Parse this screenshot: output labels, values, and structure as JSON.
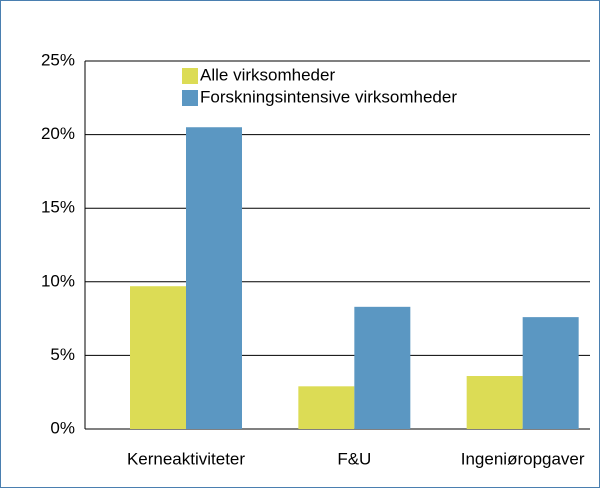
{
  "chart_data": {
    "type": "bar",
    "categories": [
      "Kerneaktiviteter",
      "F&U",
      "Ingeniøropgaver"
    ],
    "series": [
      {
        "name": "Alle virksomheder",
        "color": "#dcdc55",
        "values": [
          9.7,
          2.9,
          3.6
        ]
      },
      {
        "name": "Forskningsintensive virksomheder",
        "color": "#5b97c2",
        "values": [
          20.5,
          8.3,
          7.6
        ]
      }
    ],
    "ylim": [
      0,
      25
    ],
    "yticks": [
      {
        "value": 0,
        "label": "0%"
      },
      {
        "value": 5,
        "label": "5%"
      },
      {
        "value": 10,
        "label": "10%"
      },
      {
        "value": 15,
        "label": "15%"
      },
      {
        "value": 20,
        "label": "20%"
      },
      {
        "value": 25,
        "label": "25%"
      }
    ],
    "grid": true
  }
}
